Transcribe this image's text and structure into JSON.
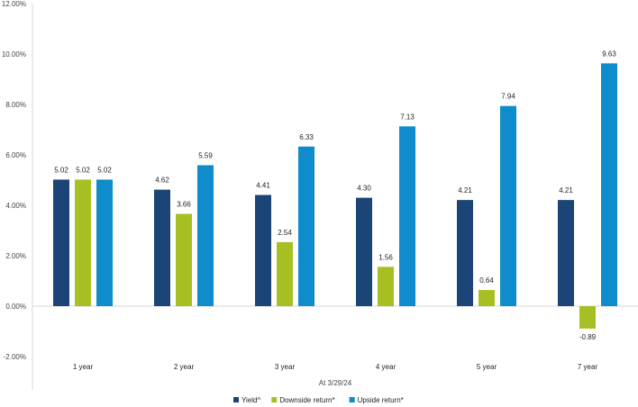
{
  "chart_data": {
    "type": "bar",
    "title": "",
    "xlabel": "At 3/29/24",
    "ylabel": "",
    "ylim": [
      -2,
      12
    ],
    "yticks": [
      -2,
      0,
      2,
      4,
      6,
      8,
      10,
      12
    ],
    "ytick_labels": [
      "-2.00%",
      "0.00%",
      "2.00%",
      "4.00%",
      "6.00%",
      "8.00%",
      "10.00%",
      "12.00%"
    ],
    "categories": [
      "1 year",
      "2 year",
      "3 year",
      "4 year",
      "5 year",
      "7 year"
    ],
    "series": [
      {
        "name": "Yield^",
        "color": "#1B4577",
        "values": [
          5.02,
          4.62,
          4.41,
          4.3,
          4.21,
          4.21
        ],
        "labels": [
          "5.02",
          "4.62",
          "4.41",
          "4.30",
          "4.21",
          "4.21"
        ]
      },
      {
        "name": "Downside return*",
        "color": "#A8BF23",
        "values": [
          5.02,
          3.66,
          2.54,
          1.56,
          0.64,
          -0.89
        ],
        "labels": [
          "5.02",
          "3.66",
          "2.54",
          "1.56",
          "0.64",
          "-0.89"
        ]
      },
      {
        "name": "Upside return*",
        "color": "#0E8CCB",
        "values": [
          5.02,
          5.59,
          6.33,
          7.13,
          7.94,
          9.63
        ],
        "labels": [
          "5.02",
          "5.59",
          "6.33",
          "7.13",
          "7.94",
          "9.63"
        ]
      }
    ],
    "gridlines": false,
    "legend_position": "bottom"
  }
}
